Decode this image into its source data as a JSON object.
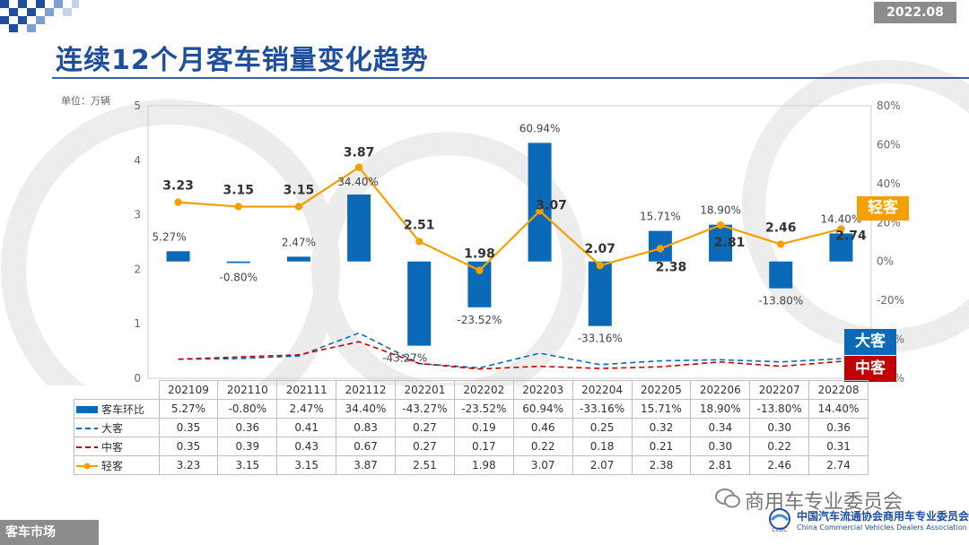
{
  "header": {
    "date": "2022.08",
    "title": "连续12个月客车销量变化趋势"
  },
  "unit_label": "单位：万辆",
  "footer": {
    "section": "客车市场",
    "wechat": "商用车专业委员会",
    "assoc_cn": "中国汽车流通协会商用车专业委员会",
    "assoc_en": "China Commercial Vehicles Dealers Association"
  },
  "tags": {
    "light": "轻客",
    "large": "大客",
    "mid": "中客"
  },
  "colors": {
    "bar": "#0b6ab8",
    "light": "#f5a000",
    "large": "#0b6ab8",
    "mid": "#c00000",
    "title": "#1f4f9c"
  },
  "chart_data": {
    "type": "bar+line",
    "categories": [
      "202109",
      "202110",
      "202111",
      "202112",
      "202201",
      "202202",
      "202203",
      "202204",
      "202205",
      "202206",
      "202207",
      "202208"
    ],
    "series": [
      {
        "name": "客车环比",
        "type": "bar",
        "axis": "right",
        "unit": "%",
        "values": [
          5.27,
          -0.8,
          2.47,
          34.4,
          -43.27,
          -23.52,
          60.94,
          -33.16,
          15.71,
          18.9,
          -13.8,
          14.4
        ],
        "labels": [
          "5.27%",
          "-0.80%",
          "2.47%",
          "34.40%",
          "-43.27%",
          "-23.52%",
          "60.94%",
          "-33.16%",
          "15.71%",
          "18.90%",
          "-13.80%",
          "14.40%"
        ]
      },
      {
        "name": "大客",
        "type": "line",
        "style": "dashed",
        "axis": "left",
        "values": [
          0.35,
          0.36,
          0.41,
          0.83,
          0.27,
          0.19,
          0.46,
          0.25,
          0.32,
          0.34,
          0.3,
          0.36
        ],
        "labels": [
          "0.35",
          "0.36",
          "0.41",
          "0.83",
          "0.27",
          "0.19",
          "0.46",
          "0.25",
          "0.32",
          "0.34",
          "0.30",
          "0.36"
        ]
      },
      {
        "name": "中客",
        "type": "line",
        "style": "dashed",
        "axis": "left",
        "values": [
          0.35,
          0.39,
          0.43,
          0.67,
          0.27,
          0.17,
          0.22,
          0.18,
          0.21,
          0.3,
          0.22,
          0.31
        ],
        "labels": [
          "0.35",
          "0.39",
          "0.43",
          "0.67",
          "0.27",
          "0.17",
          "0.22",
          "0.18",
          "0.21",
          "0.30",
          "0.22",
          "0.31"
        ]
      },
      {
        "name": "轻客",
        "type": "line",
        "style": "solid-marker",
        "axis": "left",
        "values": [
          3.23,
          3.15,
          3.15,
          3.87,
          2.51,
          1.98,
          3.07,
          2.07,
          2.38,
          2.81,
          2.46,
          2.74
        ],
        "labels": [
          "3.23",
          "3.15",
          "3.15",
          "3.87",
          "2.51",
          "1.98",
          "3.07",
          "2.07",
          "2.38",
          "2.81",
          "2.46",
          "2.74"
        ]
      }
    ],
    "y_left": {
      "range": [
        0,
        5
      ],
      "ticks": [
        "0",
        "1",
        "2",
        "3",
        "4",
        "5"
      ]
    },
    "y_right": {
      "range": [
        -60,
        80
      ],
      "ticks": [
        "80%",
        "60%",
        "40%",
        "20%",
        "0%",
        "-20%",
        "-40%",
        "-60%"
      ]
    }
  }
}
